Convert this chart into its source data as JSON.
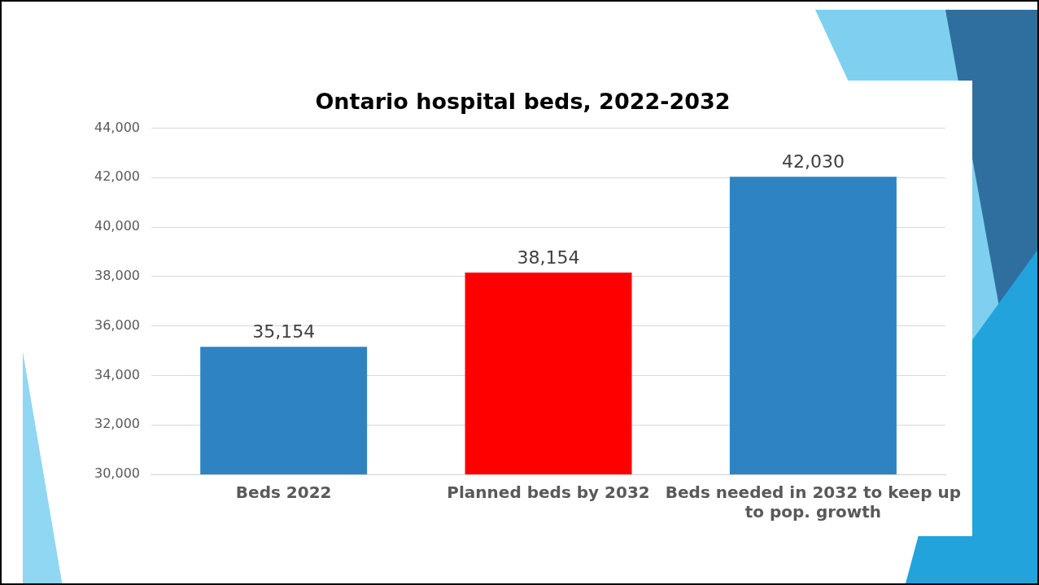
{
  "chart_data": {
    "type": "bar",
    "title": "Ontario hospital beds, 2022-2032",
    "categories": [
      "Beds 2022",
      "Planned beds by 2032",
      "Beds needed in 2032 to keep up to pop. growth"
    ],
    "values": [
      35154,
      38154,
      42030
    ],
    "colors": [
      "#2e83c3",
      "#ff0000",
      "#2e83c3"
    ],
    "value_labels": [
      "35,154",
      "38,154",
      "42,030"
    ],
    "ylim": [
      30000,
      44000
    ],
    "yticks": [
      {
        "value": 30000,
        "label": "30,000"
      },
      {
        "value": 32000,
        "label": "32,000"
      },
      {
        "value": 34000,
        "label": "34,000"
      },
      {
        "value": 36000,
        "label": "36,000"
      },
      {
        "value": 38000,
        "label": "38,000"
      },
      {
        "value": 40000,
        "label": "40,000"
      },
      {
        "value": 42000,
        "label": "42,000"
      },
      {
        "value": 44000,
        "label": "44,000"
      }
    ],
    "grid": "y",
    "legend": false
  }
}
